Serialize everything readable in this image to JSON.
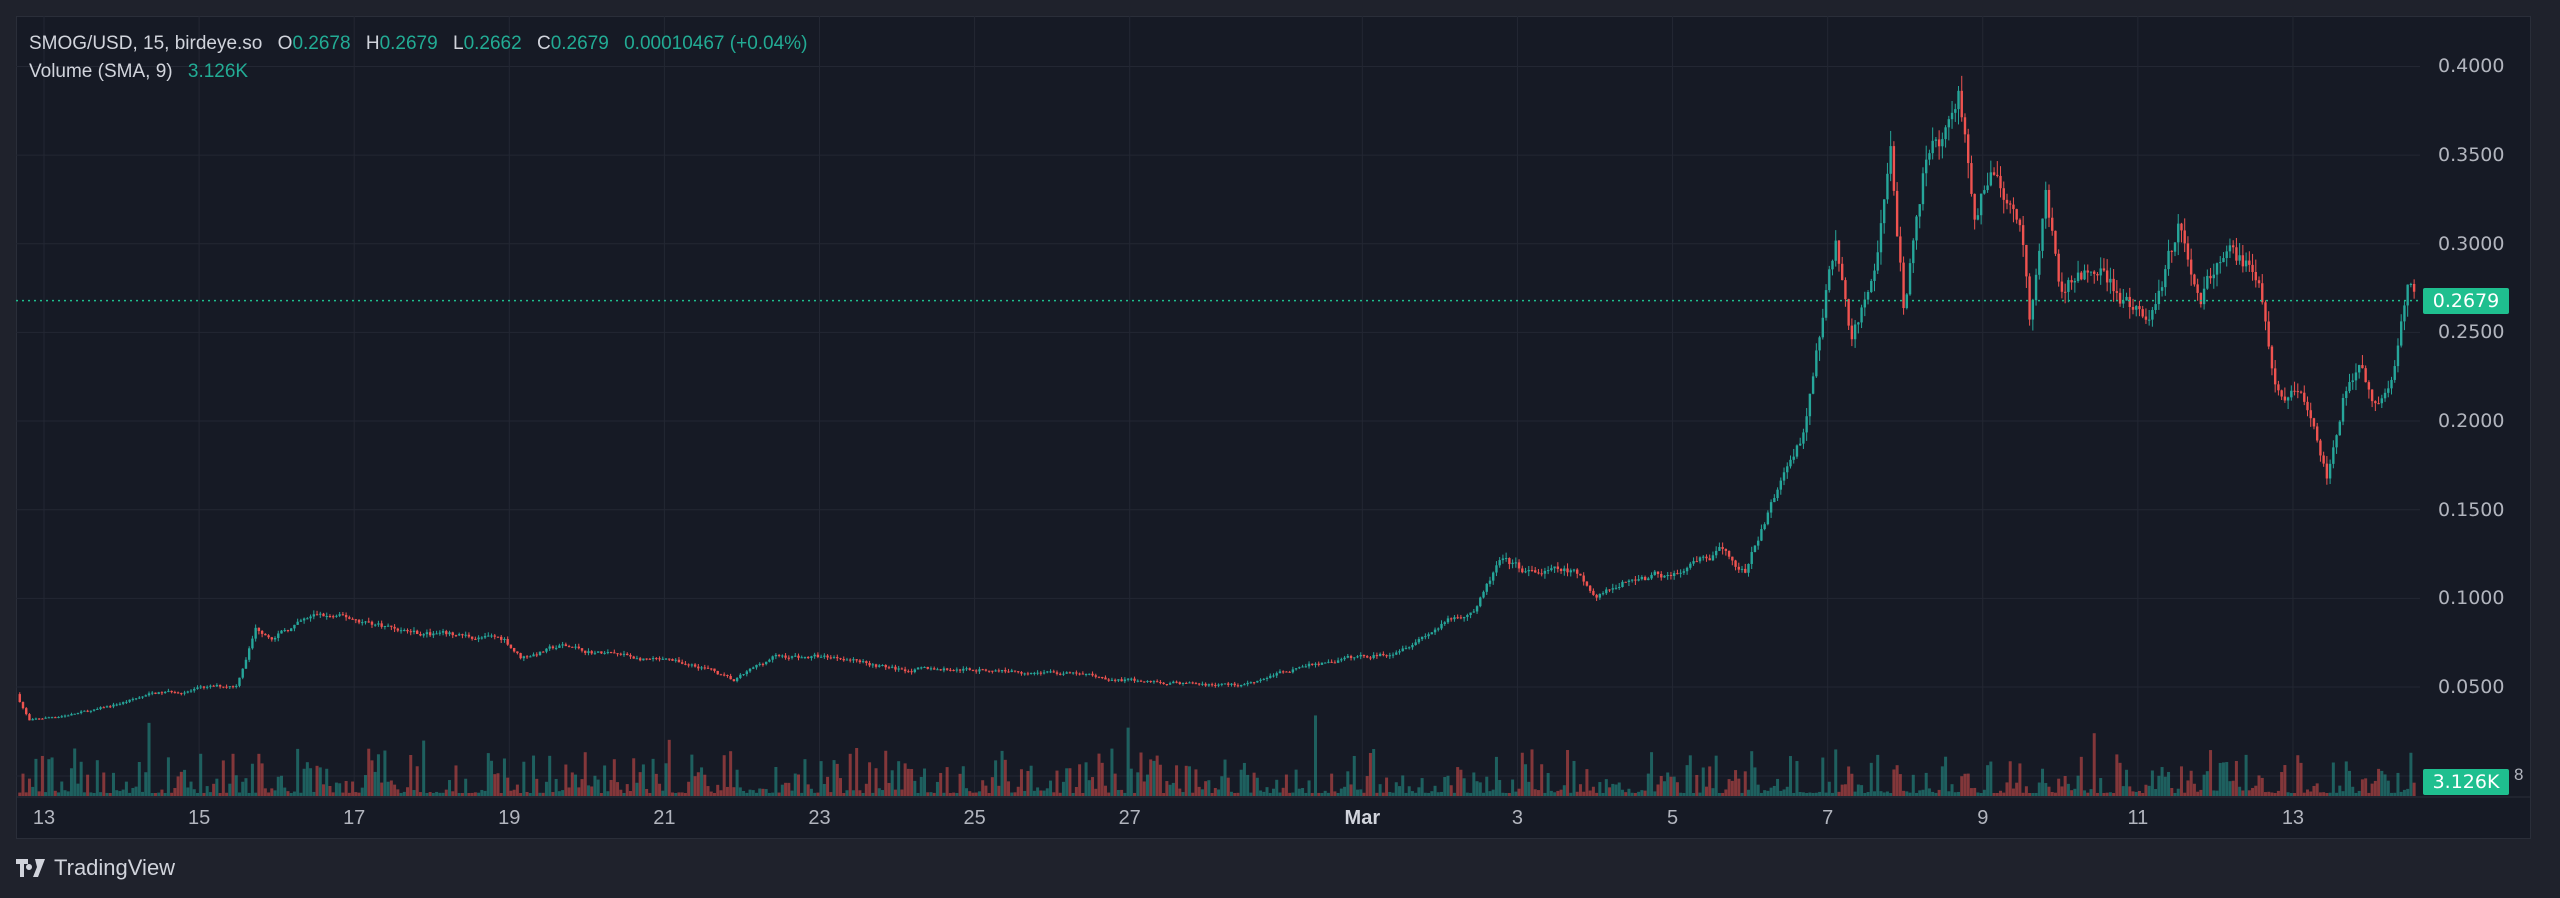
{
  "legend": {
    "symbol": "SMOG/USD, 15, birdeye.so",
    "o_label": "O",
    "o": "0.2678",
    "h_label": "H",
    "h": "0.2679",
    "l_label": "L",
    "l": "0.2662",
    "c_label": "C",
    "c": "0.2679",
    "change": "0.00010467 (+0.04%)",
    "volume_label": "Volume (SMA, 9)",
    "volume_value": "3.126K"
  },
  "branding": {
    "name": "TradingView"
  },
  "colors": {
    "up": "#26a69a",
    "down": "#ef5350",
    "last_price": "#1fbf8f",
    "background": "#161a25",
    "grid": "#232733"
  },
  "chart_data": {
    "type": "candlestick",
    "interval": "15",
    "source": "birdeye.so",
    "grid": true,
    "price_axis": {
      "position": "right",
      "range": [
        0.0,
        0.42
      ],
      "ticks": [
        "0.4000",
        "0.3500",
        "0.3000",
        "0.2500",
        "0.2000",
        "0.1500",
        "0.1000",
        "0.0500"
      ]
    },
    "time_axis": {
      "ticks": [
        {
          "label": "13",
          "date": "02-13"
        },
        {
          "label": "15",
          "date": "02-15"
        },
        {
          "label": "17",
          "date": "02-17"
        },
        {
          "label": "19",
          "date": "02-19"
        },
        {
          "label": "21",
          "date": "02-21"
        },
        {
          "label": "23",
          "date": "02-23"
        },
        {
          "label": "25",
          "date": "02-25"
        },
        {
          "label": "27",
          "date": "02-27"
        },
        {
          "label": "Mar",
          "date": "03-01"
        },
        {
          "label": "3",
          "date": "03-03"
        },
        {
          "label": "5",
          "date": "03-05"
        },
        {
          "label": "7",
          "date": "03-07"
        },
        {
          "label": "9",
          "date": "03-09"
        },
        {
          "label": "11",
          "date": "03-11"
        },
        {
          "label": "13",
          "date": "03-13"
        }
      ]
    },
    "last_price": "0.2679",
    "volume_last": "3.126K",
    "volume_axis_partial": "8",
    "price_path": [
      [
        "02-12 16:00",
        0.046
      ],
      [
        "02-12 20:00",
        0.031
      ],
      [
        "02-13 17:00",
        0.037
      ],
      [
        "02-14 10:00",
        0.046
      ],
      [
        "02-15 12:00",
        0.051
      ],
      [
        "02-15 18:00",
        0.083
      ],
      [
        "02-16 00:00",
        0.079
      ],
      [
        "02-16 13:00",
        0.09
      ],
      [
        "02-17 01:00",
        0.088
      ],
      [
        "02-17 22:00",
        0.08
      ],
      [
        "02-18 23:00",
        0.077
      ],
      [
        "02-19 04:00",
        0.067
      ],
      [
        "02-19 17:00",
        0.073
      ],
      [
        "02-20 20:00",
        0.065
      ],
      [
        "02-21 12:00",
        0.062
      ],
      [
        "02-21 22:00",
        0.053
      ],
      [
        "02-22 10:00",
        0.067
      ],
      [
        "02-23 09:00",
        0.067
      ],
      [
        "02-24 00:00",
        0.06
      ],
      [
        "02-25 01:00",
        0.06
      ],
      [
        "02-26 03:00",
        0.058
      ],
      [
        "02-27 04:00",
        0.053
      ],
      [
        "02-28 10:00",
        0.051
      ],
      [
        "02-29 06:00",
        0.062
      ],
      [
        "03-01 08:00",
        0.069
      ],
      [
        "03-01 23:00",
        0.083
      ],
      [
        "03-02 12:00",
        0.095
      ],
      [
        "03-02 19:00",
        0.12
      ],
      [
        "03-03 05:00",
        0.114
      ],
      [
        "03-03 18:00",
        0.115
      ],
      [
        "03-04 01:00",
        0.099
      ],
      [
        "03-04 12:00",
        0.111
      ],
      [
        "03-05 03:00",
        0.114
      ],
      [
        "03-05 15:00",
        0.125
      ],
      [
        "03-05 23:00",
        0.115
      ],
      [
        "03-06 09:00",
        0.161
      ],
      [
        "03-06 17:00",
        0.194
      ],
      [
        "03-07 00:00",
        0.272
      ],
      [
        "03-07 03:00",
        0.3
      ],
      [
        "03-07 08:00",
        0.245
      ],
      [
        "03-07 15:00",
        0.277
      ],
      [
        "03-07 20:00",
        0.355
      ],
      [
        "03-08 00:00",
        0.267
      ],
      [
        "03-08 06:00",
        0.336
      ],
      [
        "03-08 17:00",
        0.38
      ],
      [
        "03-08 22:00",
        0.318
      ],
      [
        "03-09 03:00",
        0.346
      ],
      [
        "03-09 13:00",
        0.3
      ],
      [
        "03-09 15:00",
        0.258
      ],
      [
        "03-09 20:00",
        0.323
      ],
      [
        "03-10 01:00",
        0.272
      ],
      [
        "03-10 12:00",
        0.292
      ],
      [
        "03-10 19:00",
        0.267
      ],
      [
        "03-11 03:00",
        0.254
      ],
      [
        "03-11 13:00",
        0.309
      ],
      [
        "03-11 20:00",
        0.274
      ],
      [
        "03-12 06:00",
        0.298
      ],
      [
        "03-12 14:00",
        0.277
      ],
      [
        "03-12 19:00",
        0.221
      ],
      [
        "03-13 04:00",
        0.212
      ],
      [
        "03-13 11:00",
        0.166
      ],
      [
        "03-13 16:00",
        0.212
      ],
      [
        "03-13 22:00",
        0.226
      ],
      [
        "03-14 01:00",
        0.207
      ],
      [
        "03-14 06:00",
        0.216
      ],
      [
        "03-14 12:00",
        0.272
      ],
      [
        "03-14 14:00",
        0.268
      ]
    ]
  }
}
